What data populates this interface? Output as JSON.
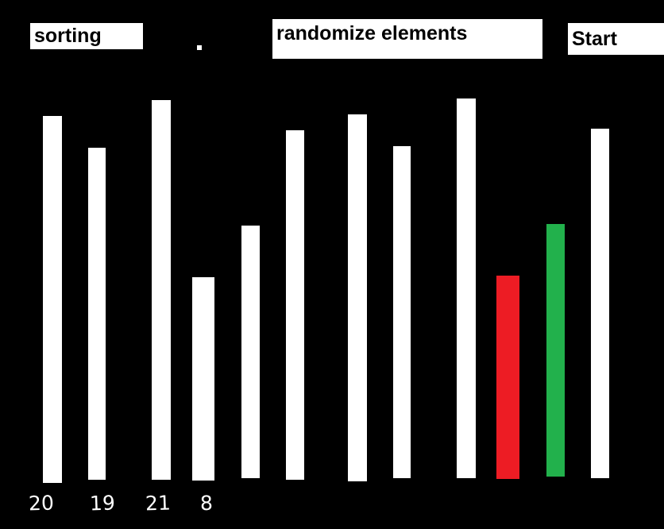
{
  "title": "sorting",
  "buttons": {
    "randomize_label": "randomize elements",
    "start_label": "Start"
  },
  "colors": {
    "background": "#000000",
    "default_bar": "#ffffff",
    "compare_bar": "#ed1c24",
    "swap_bar": "#22b14c"
  },
  "bars": [
    {
      "level": 0.966,
      "state": "default"
    },
    {
      "level": 0.874,
      "state": "default"
    },
    {
      "level": 1.0,
      "state": "default"
    },
    {
      "level": 0.535,
      "state": "default"
    },
    {
      "level": 0.666,
      "state": "default"
    },
    {
      "level": 0.92,
      "state": "default"
    },
    {
      "level": 0.966,
      "state": "default"
    },
    {
      "level": 0.874,
      "state": "default"
    },
    {
      "level": 1.0,
      "state": "default"
    },
    {
      "level": 0.535,
      "state": "compare"
    },
    {
      "level": 0.666,
      "state": "swap"
    },
    {
      "level": 0.92,
      "state": "default"
    }
  ],
  "value_labels": [
    "20",
    "19",
    "21",
    "8"
  ]
}
